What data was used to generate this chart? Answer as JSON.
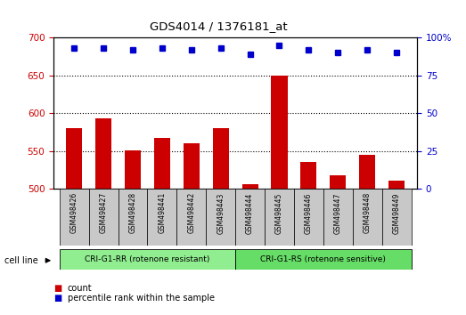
{
  "title": "GDS4014 / 1376181_at",
  "samples": [
    "GSM498426",
    "GSM498427",
    "GSM498428",
    "GSM498441",
    "GSM498442",
    "GSM498443",
    "GSM498444",
    "GSM498445",
    "GSM498446",
    "GSM498447",
    "GSM498448",
    "GSM498449"
  ],
  "bar_values": [
    580,
    593,
    551,
    567,
    560,
    581,
    506,
    650,
    536,
    518,
    545,
    511
  ],
  "bar_color": "#cc0000",
  "bar_bottom": 500,
  "percentile_values": [
    93,
    93,
    92,
    93,
    92,
    93,
    89,
    95,
    92,
    90,
    92,
    90
  ],
  "percentile_color": "#0000cc",
  "ylim_left": [
    500,
    700
  ],
  "ylim_right": [
    0,
    100
  ],
  "yticks_left": [
    500,
    550,
    600,
    650,
    700
  ],
  "yticks_right": [
    0,
    25,
    50,
    75,
    100
  ],
  "grid_values": [
    550,
    600,
    650
  ],
  "group1_label": "CRI-G1-RR (rotenone resistant)",
  "group2_label": "CRI-G1-RS (rotenone sensitive)",
  "group1_count": 6,
  "group2_count": 6,
  "group1_color": "#90ee90",
  "group2_color": "#66dd66",
  "cell_line_label": "cell line",
  "legend_count": "count",
  "legend_percentile": "percentile rank within the sample",
  "bar_width": 0.55,
  "ylabel_left_color": "#cc0000",
  "ylabel_right_color": "#0000cc",
  "tick_area_color": "#c8c8c8"
}
